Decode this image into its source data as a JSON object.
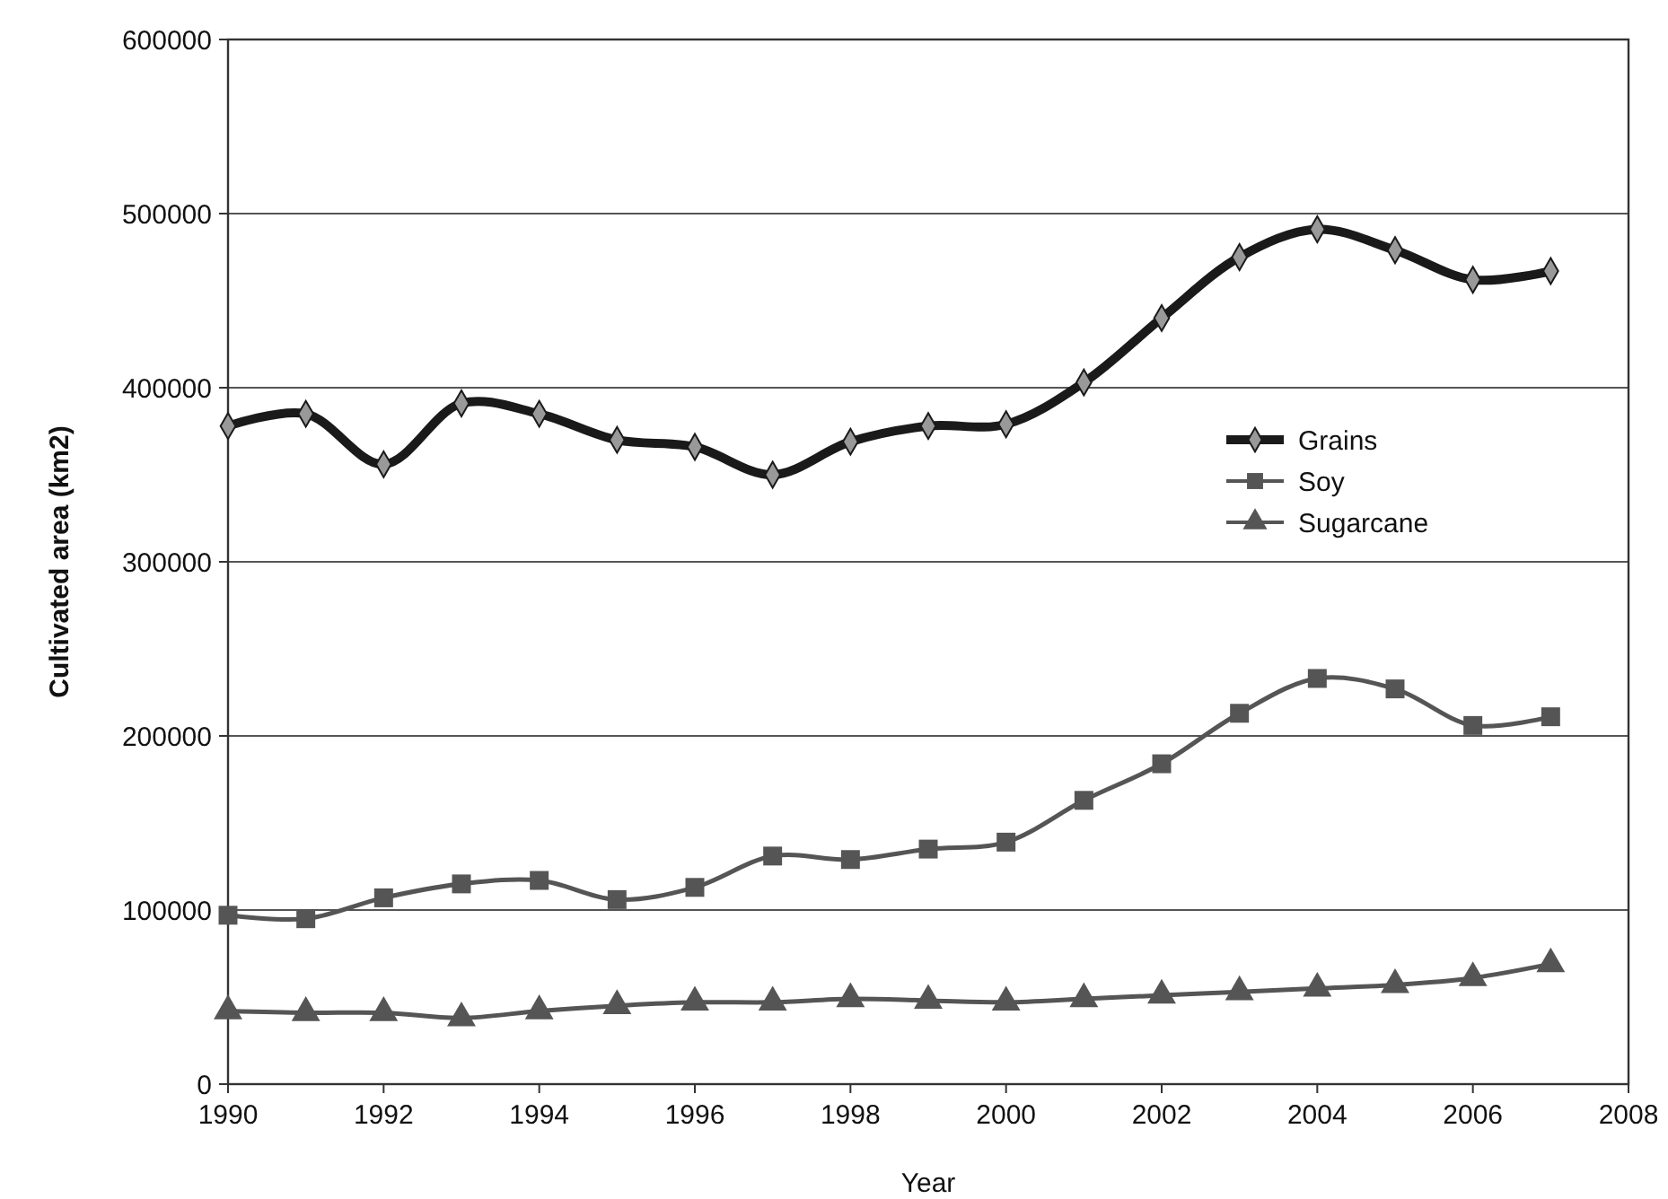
{
  "chart_data": {
    "type": "line",
    "xlabel": "Year",
    "ylabel": "Cultivated area (km2)",
    "x": [
      1990,
      1991,
      1992,
      1993,
      1994,
      1995,
      1996,
      1997,
      1998,
      1999,
      2000,
      2001,
      2002,
      2003,
      2004,
      2005,
      2006,
      2007
    ],
    "series": [
      {
        "name": "Grains",
        "color": "#1a1a1a",
        "marker": "diamond",
        "values": [
          378000,
          385000,
          356000,
          391000,
          385000,
          370000,
          366000,
          350000,
          369000,
          378000,
          379000,
          403000,
          440000,
          475000,
          491000,
          479000,
          462000,
          467000
        ]
      },
      {
        "name": "Soy",
        "color": "#555555",
        "marker": "square",
        "values": [
          97000,
          95000,
          107000,
          115000,
          117000,
          106000,
          113000,
          131000,
          129000,
          135000,
          139000,
          163000,
          184000,
          213000,
          233000,
          227000,
          206000,
          211000
        ]
      },
      {
        "name": "Sugarcane",
        "color": "#555555",
        "marker": "triangle",
        "values": [
          42000,
          41000,
          41000,
          38000,
          42000,
          45000,
          47000,
          47000,
          49000,
          48000,
          47000,
          49000,
          51000,
          53000,
          55000,
          57000,
          61000,
          69000
        ]
      }
    ],
    "xlim": [
      1990,
      2008
    ],
    "xticks": [
      1990,
      1992,
      1994,
      1996,
      1998,
      2000,
      2002,
      2004,
      2006,
      2008
    ],
    "ylim": [
      0,
      600000
    ],
    "yticks": [
      0,
      100000,
      200000,
      300000,
      400000,
      500000,
      600000
    ],
    "grid": "y",
    "legend": "right",
    "line_style": "solid"
  }
}
